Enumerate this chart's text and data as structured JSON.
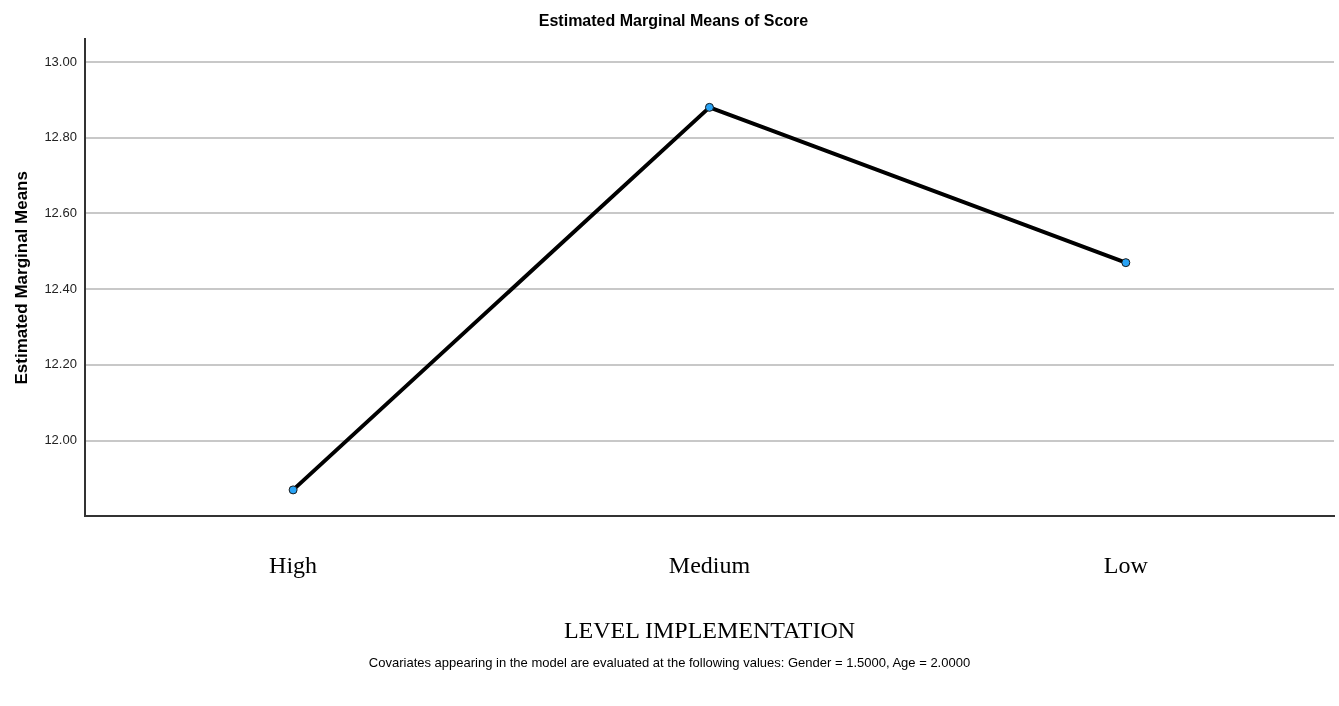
{
  "chart_data": {
    "type": "line",
    "title": "Estimated Marginal Means of Score",
    "xlabel": "LEVEL IMPLEMENTATION",
    "ylabel": "Estimated Marginal Means",
    "categories": [
      "High",
      "Medium",
      "Low"
    ],
    "series": [
      {
        "color": "#000000",
        "values": [
          11.87,
          12.88,
          12.47
        ]
      }
    ],
    "ylim": [
      11.8,
      13.06
    ],
    "yticks": [
      {
        "value": 12,
        "label": "12.00"
      },
      {
        "value": 12.2,
        "label": "12.20"
      },
      {
        "value": 12.4,
        "label": "12.40"
      },
      {
        "value": 12.6,
        "label": "12.60"
      },
      {
        "value": 12.8,
        "label": "12.80"
      },
      {
        "value": 13,
        "label": "13.00"
      }
    ],
    "grid": "y",
    "legend": false,
    "marker": "circle",
    "line_style": "solid",
    "annotations": [
      "Covariates appearing in the model are evaluated at the following values: Gender = 1.5000, Age = 2.0000"
    ]
  }
}
